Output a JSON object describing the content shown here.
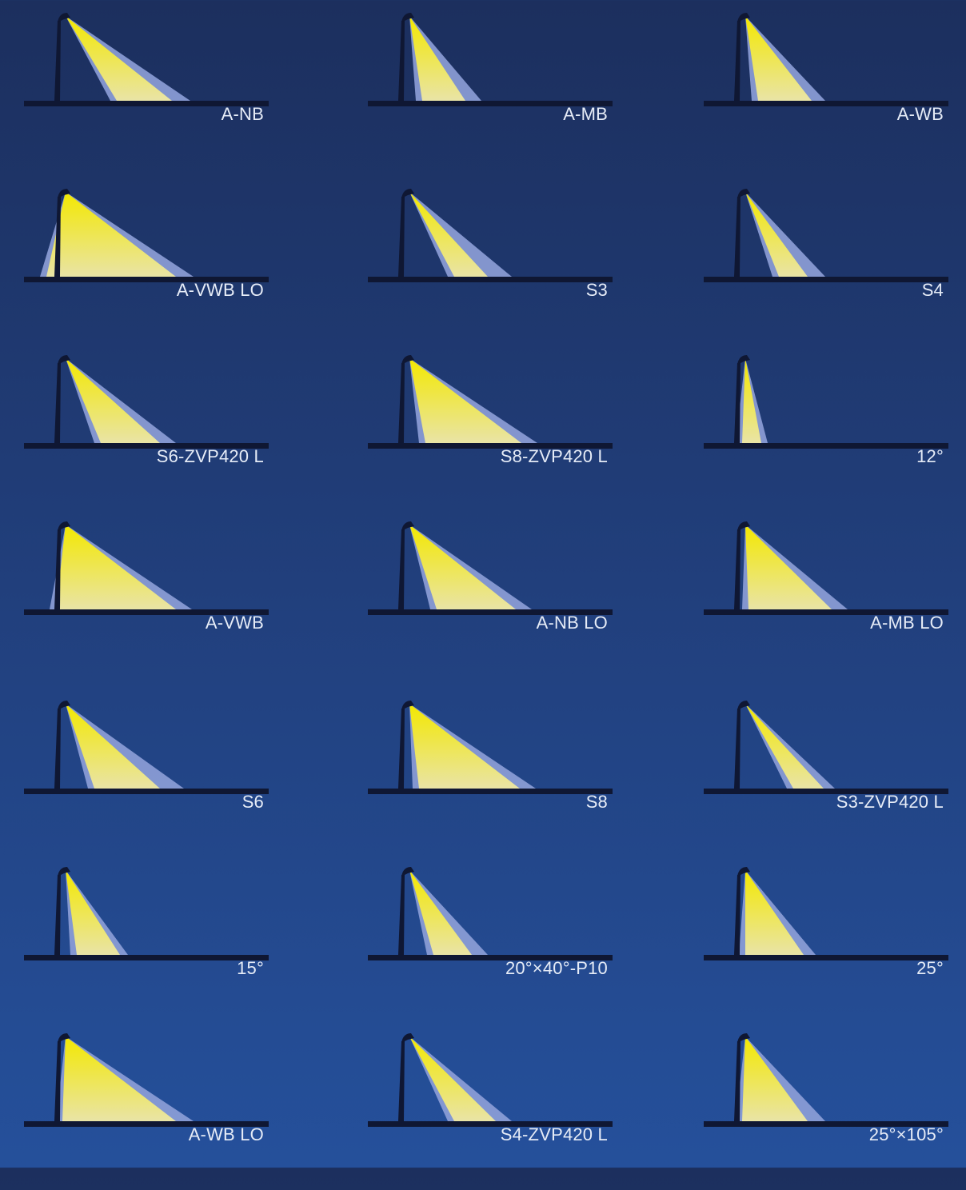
{
  "colors": {
    "beam_top": "#f3e800",
    "beam_bottom": "#e9e4a6",
    "beam_shadow": "#8ea0d8",
    "pole": "#0f1733",
    "ground": "#0f1733",
    "label": "#e6ecf7"
  },
  "optics": [
    {
      "label": "A-NB"
    },
    {
      "label": "A-MB"
    },
    {
      "label": "A-WB"
    },
    {
      "label": "A-VWB LO"
    },
    {
      "label": "S3"
    },
    {
      "label": "S4"
    },
    {
      "label": "S6-ZVP420 L"
    },
    {
      "label": "S8-ZVP420 L"
    },
    {
      "label": "12°"
    },
    {
      "label": "A-VWB"
    },
    {
      "label": "A-NB LO"
    },
    {
      "label": "A-MB LO"
    },
    {
      "label": "S6"
    },
    {
      "label": "S8"
    },
    {
      "label": "S3-ZVP420 L"
    },
    {
      "label": "15°"
    },
    {
      "label": "20°×40°-P10"
    },
    {
      "label": "25°"
    },
    {
      "label": "A-WB LO"
    },
    {
      "label": "S4-ZVP420 L"
    },
    {
      "label": "25°×105°"
    }
  ]
}
